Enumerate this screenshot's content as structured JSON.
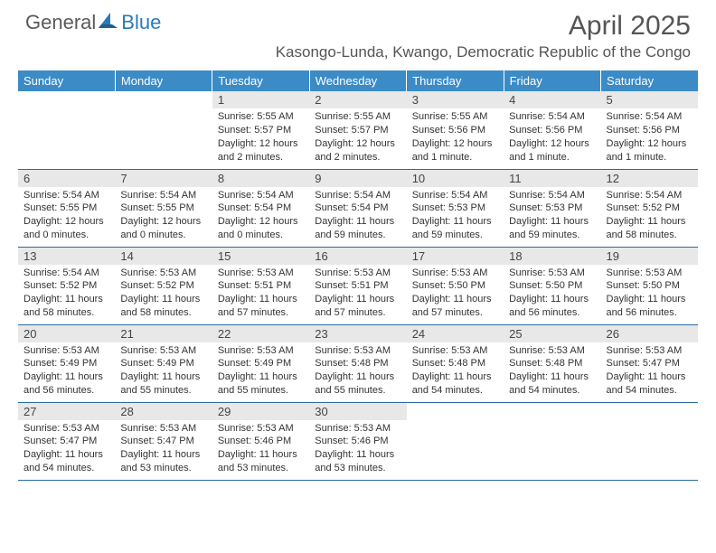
{
  "logo": {
    "part1": "General",
    "part2": "Blue"
  },
  "title": "April 2025",
  "location": "Kasongo-Lunda, Kwango, Democratic Republic of the Congo",
  "colors": {
    "header_bg": "#3b8bc7",
    "header_text": "#ffffff",
    "daynum_bg": "#e8e8e8",
    "row_border": "#2a6aa0",
    "logo_gray": "#5a5a5a",
    "logo_blue": "#2a7ab8",
    "title_color": "#555555",
    "text_color": "#333333"
  },
  "dayHeaders": [
    "Sunday",
    "Monday",
    "Tuesday",
    "Wednesday",
    "Thursday",
    "Friday",
    "Saturday"
  ],
  "weeks": [
    [
      {
        "num": "",
        "lines": [
          "",
          "",
          "",
          ""
        ]
      },
      {
        "num": "",
        "lines": [
          "",
          "",
          "",
          ""
        ]
      },
      {
        "num": "1",
        "lines": [
          "Sunrise: 5:55 AM",
          "Sunset: 5:57 PM",
          "Daylight: 12 hours",
          "and 2 minutes."
        ]
      },
      {
        "num": "2",
        "lines": [
          "Sunrise: 5:55 AM",
          "Sunset: 5:57 PM",
          "Daylight: 12 hours",
          "and 2 minutes."
        ]
      },
      {
        "num": "3",
        "lines": [
          "Sunrise: 5:55 AM",
          "Sunset: 5:56 PM",
          "Daylight: 12 hours",
          "and 1 minute."
        ]
      },
      {
        "num": "4",
        "lines": [
          "Sunrise: 5:54 AM",
          "Sunset: 5:56 PM",
          "Daylight: 12 hours",
          "and 1 minute."
        ]
      },
      {
        "num": "5",
        "lines": [
          "Sunrise: 5:54 AM",
          "Sunset: 5:56 PM",
          "Daylight: 12 hours",
          "and 1 minute."
        ]
      }
    ],
    [
      {
        "num": "6",
        "lines": [
          "Sunrise: 5:54 AM",
          "Sunset: 5:55 PM",
          "Daylight: 12 hours",
          "and 0 minutes."
        ]
      },
      {
        "num": "7",
        "lines": [
          "Sunrise: 5:54 AM",
          "Sunset: 5:55 PM",
          "Daylight: 12 hours",
          "and 0 minutes."
        ]
      },
      {
        "num": "8",
        "lines": [
          "Sunrise: 5:54 AM",
          "Sunset: 5:54 PM",
          "Daylight: 12 hours",
          "and 0 minutes."
        ]
      },
      {
        "num": "9",
        "lines": [
          "Sunrise: 5:54 AM",
          "Sunset: 5:54 PM",
          "Daylight: 11 hours",
          "and 59 minutes."
        ]
      },
      {
        "num": "10",
        "lines": [
          "Sunrise: 5:54 AM",
          "Sunset: 5:53 PM",
          "Daylight: 11 hours",
          "and 59 minutes."
        ]
      },
      {
        "num": "11",
        "lines": [
          "Sunrise: 5:54 AM",
          "Sunset: 5:53 PM",
          "Daylight: 11 hours",
          "and 59 minutes."
        ]
      },
      {
        "num": "12",
        "lines": [
          "Sunrise: 5:54 AM",
          "Sunset: 5:52 PM",
          "Daylight: 11 hours",
          "and 58 minutes."
        ]
      }
    ],
    [
      {
        "num": "13",
        "lines": [
          "Sunrise: 5:54 AM",
          "Sunset: 5:52 PM",
          "Daylight: 11 hours",
          "and 58 minutes."
        ]
      },
      {
        "num": "14",
        "lines": [
          "Sunrise: 5:53 AM",
          "Sunset: 5:52 PM",
          "Daylight: 11 hours",
          "and 58 minutes."
        ]
      },
      {
        "num": "15",
        "lines": [
          "Sunrise: 5:53 AM",
          "Sunset: 5:51 PM",
          "Daylight: 11 hours",
          "and 57 minutes."
        ]
      },
      {
        "num": "16",
        "lines": [
          "Sunrise: 5:53 AM",
          "Sunset: 5:51 PM",
          "Daylight: 11 hours",
          "and 57 minutes."
        ]
      },
      {
        "num": "17",
        "lines": [
          "Sunrise: 5:53 AM",
          "Sunset: 5:50 PM",
          "Daylight: 11 hours",
          "and 57 minutes."
        ]
      },
      {
        "num": "18",
        "lines": [
          "Sunrise: 5:53 AM",
          "Sunset: 5:50 PM",
          "Daylight: 11 hours",
          "and 56 minutes."
        ]
      },
      {
        "num": "19",
        "lines": [
          "Sunrise: 5:53 AM",
          "Sunset: 5:50 PM",
          "Daylight: 11 hours",
          "and 56 minutes."
        ]
      }
    ],
    [
      {
        "num": "20",
        "lines": [
          "Sunrise: 5:53 AM",
          "Sunset: 5:49 PM",
          "Daylight: 11 hours",
          "and 56 minutes."
        ]
      },
      {
        "num": "21",
        "lines": [
          "Sunrise: 5:53 AM",
          "Sunset: 5:49 PM",
          "Daylight: 11 hours",
          "and 55 minutes."
        ]
      },
      {
        "num": "22",
        "lines": [
          "Sunrise: 5:53 AM",
          "Sunset: 5:49 PM",
          "Daylight: 11 hours",
          "and 55 minutes."
        ]
      },
      {
        "num": "23",
        "lines": [
          "Sunrise: 5:53 AM",
          "Sunset: 5:48 PM",
          "Daylight: 11 hours",
          "and 55 minutes."
        ]
      },
      {
        "num": "24",
        "lines": [
          "Sunrise: 5:53 AM",
          "Sunset: 5:48 PM",
          "Daylight: 11 hours",
          "and 54 minutes."
        ]
      },
      {
        "num": "25",
        "lines": [
          "Sunrise: 5:53 AM",
          "Sunset: 5:48 PM",
          "Daylight: 11 hours",
          "and 54 minutes."
        ]
      },
      {
        "num": "26",
        "lines": [
          "Sunrise: 5:53 AM",
          "Sunset: 5:47 PM",
          "Daylight: 11 hours",
          "and 54 minutes."
        ]
      }
    ],
    [
      {
        "num": "27",
        "lines": [
          "Sunrise: 5:53 AM",
          "Sunset: 5:47 PM",
          "Daylight: 11 hours",
          "and 54 minutes."
        ]
      },
      {
        "num": "28",
        "lines": [
          "Sunrise: 5:53 AM",
          "Sunset: 5:47 PM",
          "Daylight: 11 hours",
          "and 53 minutes."
        ]
      },
      {
        "num": "29",
        "lines": [
          "Sunrise: 5:53 AM",
          "Sunset: 5:46 PM",
          "Daylight: 11 hours",
          "and 53 minutes."
        ]
      },
      {
        "num": "30",
        "lines": [
          "Sunrise: 5:53 AM",
          "Sunset: 5:46 PM",
          "Daylight: 11 hours",
          "and 53 minutes."
        ]
      },
      {
        "num": "",
        "lines": [
          "",
          "",
          "",
          ""
        ]
      },
      {
        "num": "",
        "lines": [
          "",
          "",
          "",
          ""
        ]
      },
      {
        "num": "",
        "lines": [
          "",
          "",
          "",
          ""
        ]
      }
    ]
  ]
}
